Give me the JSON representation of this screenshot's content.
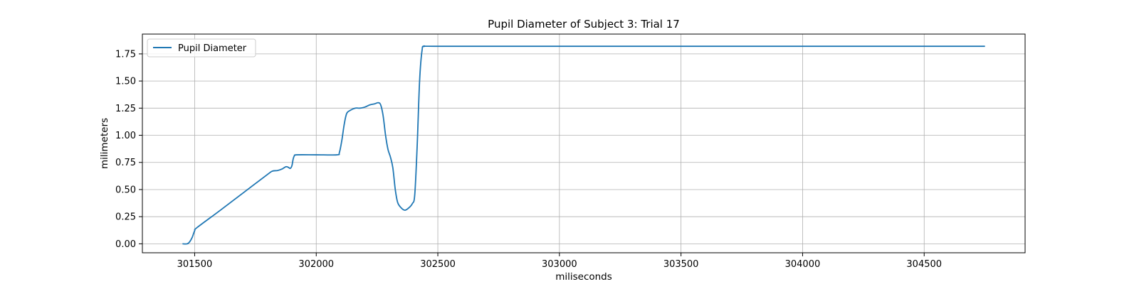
{
  "chart_data": {
    "type": "line",
    "title": "Pupil Diameter of Subject 3: Trial 17",
    "xlabel": "miliseconds",
    "ylabel": "milimeters",
    "xlim": [
      301285,
      304915
    ],
    "ylim": [
      -0.0825,
      1.9325
    ],
    "x_ticks": [
      301500,
      302000,
      302500,
      303000,
      303500,
      304000,
      304500
    ],
    "y_ticks": [
      0.0,
      0.25,
      0.5,
      0.75,
      1.0,
      1.25,
      1.5,
      1.75
    ],
    "x_tick_labels": [
      "301500",
      "302000",
      "302500",
      "303000",
      "303500",
      "304000",
      "304500"
    ],
    "y_tick_labels": [
      "0.00",
      "0.25",
      "0.50",
      "0.75",
      "1.00",
      "1.25",
      "1.50",
      "1.75"
    ],
    "grid": true,
    "legend": {
      "position": "top-left",
      "entries": [
        "Pupil Diameter"
      ]
    },
    "series": [
      {
        "name": "Pupil Diameter",
        "color": "#1f77b4",
        "points": [
          [
            301450,
            0.0
          ],
          [
            301470,
            0.0
          ],
          [
            301480,
            0.02
          ],
          [
            301490,
            0.06
          ],
          [
            301500,
            0.12
          ],
          [
            301510,
            0.15
          ],
          [
            301600,
            0.3
          ],
          [
            301700,
            0.47
          ],
          [
            301800,
            0.64
          ],
          [
            301820,
            0.67
          ],
          [
            301840,
            0.675
          ],
          [
            301860,
            0.69
          ],
          [
            301875,
            0.71
          ],
          [
            301885,
            0.705
          ],
          [
            301893,
            0.695
          ],
          [
            301900,
            0.72
          ],
          [
            301905,
            0.78
          ],
          [
            301910,
            0.81
          ],
          [
            301920,
            0.82
          ],
          [
            302000,
            0.82
          ],
          [
            302085,
            0.82
          ],
          [
            302095,
            0.84
          ],
          [
            302105,
            0.95
          ],
          [
            302115,
            1.1
          ],
          [
            302125,
            1.2
          ],
          [
            302140,
            1.23
          ],
          [
            302160,
            1.25
          ],
          [
            302180,
            1.25
          ],
          [
            302200,
            1.26
          ],
          [
            302220,
            1.28
          ],
          [
            302240,
            1.29
          ],
          [
            302255,
            1.3
          ],
          [
            302265,
            1.28
          ],
          [
            302275,
            1.18
          ],
          [
            302285,
            1.0
          ],
          [
            302295,
            0.87
          ],
          [
            302305,
            0.8
          ],
          [
            302315,
            0.7
          ],
          [
            302325,
            0.5
          ],
          [
            302335,
            0.38
          ],
          [
            302350,
            0.33
          ],
          [
            302365,
            0.31
          ],
          [
            302380,
            0.33
          ],
          [
            302395,
            0.37
          ],
          [
            302405,
            0.45
          ],
          [
            302415,
            0.9
          ],
          [
            302425,
            1.5
          ],
          [
            302435,
            1.78
          ],
          [
            302445,
            1.82
          ],
          [
            302500,
            1.82
          ],
          [
            303000,
            1.82
          ],
          [
            303500,
            1.82
          ],
          [
            304000,
            1.82
          ],
          [
            304500,
            1.82
          ],
          [
            304750,
            1.82
          ]
        ]
      }
    ]
  }
}
